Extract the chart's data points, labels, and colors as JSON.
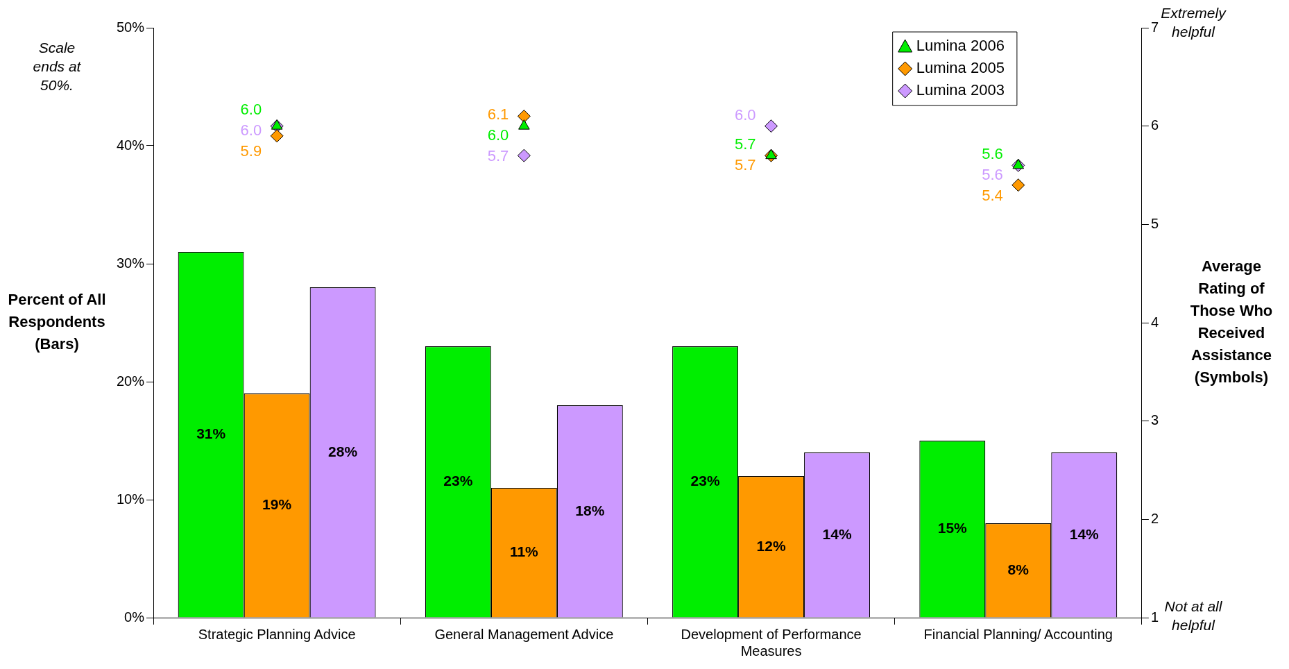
{
  "chart_data": {
    "type": "bar",
    "categories": [
      "Strategic Planning Advice",
      "General Management Advice",
      "Development of Performance Measures",
      "Financial Planning/ Accounting"
    ],
    "ylabel": "Percent of All Respondents (Bars)",
    "y2label": "Average Rating of Those Who Received Assistance (Symbols)",
    "ylim": [
      0,
      50
    ],
    "yticks": [
      {
        "value": 0,
        "label": "0%"
      },
      {
        "value": 10,
        "label": "10%"
      },
      {
        "value": 20,
        "label": "20%"
      },
      {
        "value": 30,
        "label": "30%"
      },
      {
        "value": 40,
        "label": "40%"
      },
      {
        "value": 50,
        "label": "50%"
      }
    ],
    "y2lim": [
      1,
      7
    ],
    "y2ticks": [
      1,
      2,
      3,
      4,
      5,
      6,
      7
    ],
    "grid": false,
    "legend": "top right",
    "annotations": [
      "Scale ends at 50%.",
      "Extremely helpful",
      "Not at all helpful"
    ],
    "series": [
      {
        "color": "#00ee00",
        "values": [
          31,
          23,
          23,
          15
        ],
        "value_labels": [
          "31%",
          "23%",
          "23%",
          "15%"
        ]
      },
      {
        "color": "#ff9900",
        "values": [
          19,
          11,
          12,
          8
        ],
        "value_labels": [
          "19%",
          "11%",
          "12%",
          "8%"
        ]
      },
      {
        "color": "#cc99ff",
        "values": [
          28,
          18,
          14,
          14
        ],
        "value_labels": [
          "28%",
          "18%",
          "14%",
          "14%"
        ]
      },
      {
        "type": "scatter",
        "name": "Lumina 2006",
        "axis": "y2",
        "marker": "triangle",
        "color": "#00ee00",
        "x": [
          "Strategic Planning Advice",
          "General Management Advice",
          "Development of Performance Measures",
          "Financial Planning/ Accounting"
        ],
        "values": [
          6.0,
          6.0,
          5.7,
          5.6
        ],
        "value_labels": [
          "6.0",
          "6.0",
          "5.7",
          "5.6"
        ]
      },
      {
        "type": "scatter",
        "name": "Lumina 2005",
        "axis": "y2",
        "marker": "diamond",
        "color": "#ff9900",
        "x": [
          "Strategic Planning Advice",
          "General Management Advice",
          "Development of Performance Measures",
          "Financial Planning/ Accounting"
        ],
        "values": [
          5.9,
          6.1,
          5.7,
          5.4
        ],
        "value_labels": [
          "5.9",
          "6.1",
          "5.7",
          "5.4"
        ]
      },
      {
        "type": "scatter",
        "name": "Lumina 2003",
        "axis": "y2",
        "marker": "diamond",
        "color": "#cc99ff",
        "x": [
          "Strategic Planning Advice",
          "General Management Advice",
          "Development of Performance Measures",
          "Financial Planning/ Accounting"
        ],
        "values": [
          6.0,
          5.7,
          6.0,
          5.6
        ],
        "value_labels": [
          "6.0",
          "5.7",
          "6.0",
          "5.6"
        ]
      }
    ]
  }
}
